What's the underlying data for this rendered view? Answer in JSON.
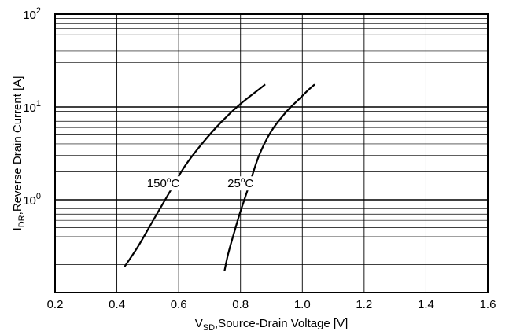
{
  "chart_data": {
    "type": "line",
    "x_label": {
      "main": "V",
      "sub": "SD",
      "rest": ",Source-Drain Voltage  [V]"
    },
    "y_label": {
      "main": "I",
      "sub": "DR",
      "rest": ",Reverse Drain Current  [A]"
    },
    "x_range": [
      0.2,
      1.6
    ],
    "y_range": [
      0.1,
      100
    ],
    "y_scale": "log",
    "grid": true,
    "x_ticks": [
      "0.2",
      "0.4",
      "0.6",
      "0.8",
      "1.0",
      "1.2",
      "1.4",
      "1.6"
    ],
    "y_ticks": [
      {
        "base": "10",
        "exp": "2",
        "value": 100
      },
      {
        "base": "10",
        "exp": "1",
        "value": 10
      },
      {
        "base": "10",
        "exp": "0",
        "value": 1
      }
    ],
    "series": [
      {
        "name": "150°C",
        "label": {
          "pre": "150",
          "deg": "o",
          "post": "C",
          "at": [
            0.55,
            1.5
          ]
        },
        "points": [
          [
            0.425,
            0.19
          ],
          [
            0.47,
            0.32
          ],
          [
            0.52,
            0.62
          ],
          [
            0.57,
            1.2
          ],
          [
            0.62,
            2.3
          ],
          [
            0.68,
            4.2
          ],
          [
            0.74,
            7.0
          ],
          [
            0.8,
            10.8
          ],
          [
            0.86,
            15.5
          ],
          [
            0.88,
            17.5
          ]
        ]
      },
      {
        "name": "25°C",
        "label": {
          "pre": "25",
          "deg": "o",
          "post": "C",
          "at": [
            0.8,
            1.5
          ]
        },
        "points": [
          [
            0.748,
            0.17
          ],
          [
            0.76,
            0.26
          ],
          [
            0.78,
            0.45
          ],
          [
            0.8,
            0.75
          ],
          [
            0.83,
            1.5
          ],
          [
            0.86,
            3.0
          ],
          [
            0.9,
            5.5
          ],
          [
            0.95,
            9.0
          ],
          [
            0.99,
            12.2
          ],
          [
            1.02,
            15.3
          ],
          [
            1.04,
            17.5
          ]
        ]
      }
    ]
  }
}
